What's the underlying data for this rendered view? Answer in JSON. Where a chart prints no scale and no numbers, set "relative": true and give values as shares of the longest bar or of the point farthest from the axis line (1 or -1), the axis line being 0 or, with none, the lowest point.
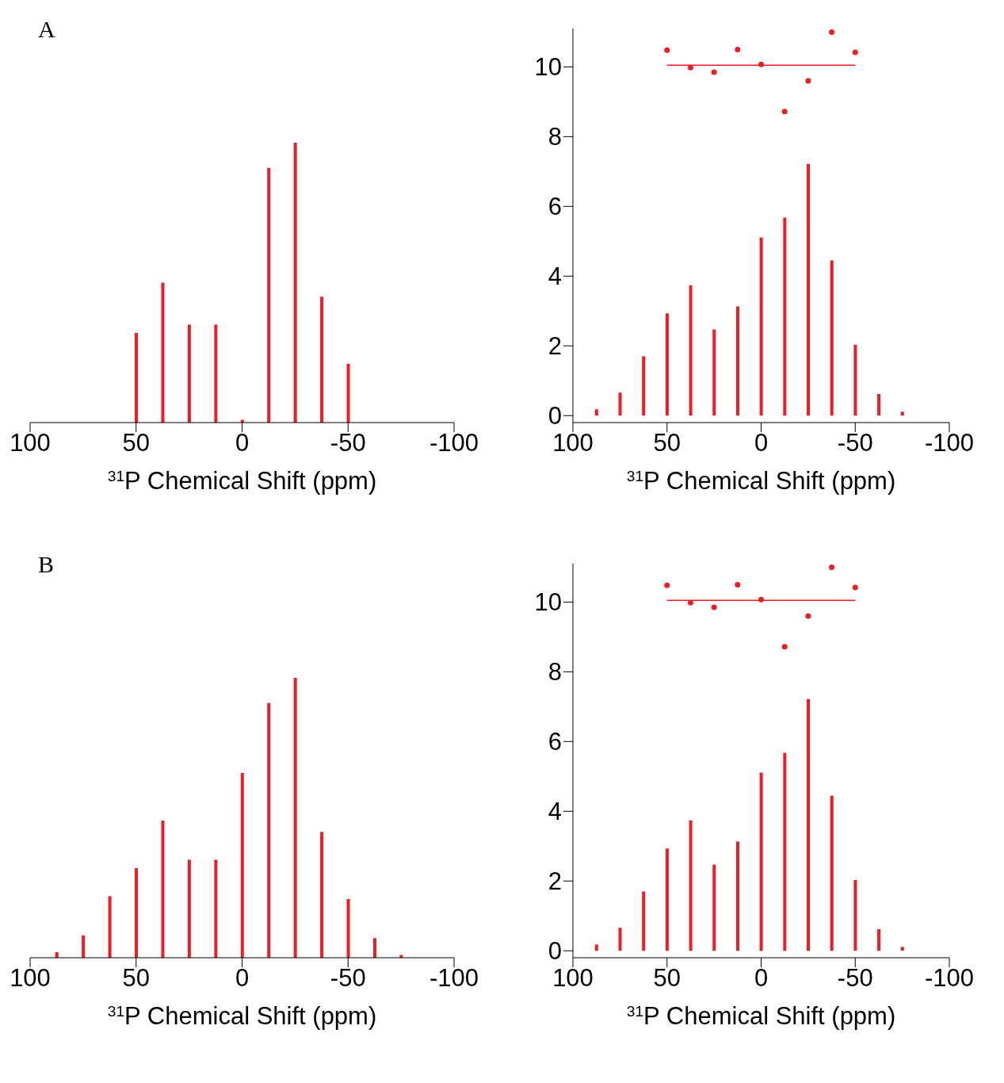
{
  "chart_data": [
    {
      "type": "bar",
      "annotations": [
        "A"
      ],
      "relative": true,
      "x": [
        50,
        37.5,
        25,
        12.5,
        0,
        -12.5,
        -25,
        -37.5,
        -50
      ],
      "values": [
        0.32,
        0.5,
        0.35,
        0.35,
        0.01,
        0.91,
        1,
        0.45,
        0.21
      ],
      "color": "#ee1c25",
      "xlim": [
        100,
        -100
      ],
      "xticks": [
        100,
        50,
        0,
        -50,
        -100
      ],
      "xlabel": "$^{31}$P Chemical Shift (ppm)",
      "tick_labels": "x"
    },
    {
      "type": "bar",
      "x": [
        87.5,
        75,
        62.5,
        50,
        37.5,
        25,
        12.5,
        0,
        -12.5,
        -25,
        -37.5,
        -50,
        -62.5,
        -75
      ],
      "series": [
        {
          "type": "bar",
          "color": "#ee1c25",
          "values": [
            0.18,
            0.66,
            1.7,
            2.93,
            3.74,
            2.47,
            3.13,
            5.11,
            5.68,
            7.22,
            4.45,
            2.03,
            0.62,
            0.11
          ]
        },
        {
          "type": "scatter",
          "marker": "circle",
          "color": "#ee1c25",
          "x": [
            50,
            37.5,
            25,
            12.5,
            0,
            -12.5,
            -25,
            -37.5,
            -50
          ],
          "values": [
            10.48,
            9.98,
            9.85,
            10.5,
            10.07,
            8.72,
            9.6,
            11.0,
            10.42
          ]
        },
        {
          "type": "line",
          "color": "#ee1c25",
          "x": [
            50,
            -50
          ],
          "values": [
            10.05,
            10.05
          ]
        }
      ],
      "xlim": [
        100,
        -100
      ],
      "xticks": [
        100,
        50,
        0,
        -50,
        -100
      ],
      "ylim": [
        -0.2,
        11.1
      ],
      "yticks": [
        0,
        2,
        4,
        6,
        8,
        10
      ],
      "xlabel": "$^{31}$P Chemical Shift (ppm)"
    },
    {
      "type": "bar",
      "annotations": [
        "B"
      ],
      "relative": true,
      "x": [
        87.5,
        75,
        62.5,
        50,
        37.5,
        25,
        12.5,
        0,
        -12.5,
        -25,
        -37.5,
        -50,
        -62.5,
        -75
      ],
      "values": [
        0.02,
        0.08,
        0.22,
        0.32,
        0.49,
        0.35,
        0.35,
        0.66,
        0.91,
        1,
        0.45,
        0.21,
        0.07,
        0.01
      ],
      "color": "#ee1c25",
      "xlim": [
        100,
        -100
      ],
      "xticks": [
        100,
        50,
        0,
        -50,
        -100
      ],
      "xlabel": "$^{31}$P Chemical Shift (ppm)",
      "tick_labels": "x"
    },
    {
      "type": "bar",
      "x": [
        87.5,
        75,
        62.5,
        50,
        37.5,
        25,
        12.5,
        0,
        -12.5,
        -25,
        -37.5,
        -50,
        -62.5,
        -75
      ],
      "series": [
        {
          "type": "bar",
          "color": "#ee1c25",
          "values": [
            0.18,
            0.66,
            1.7,
            2.93,
            3.74,
            2.47,
            3.13,
            5.11,
            5.68,
            7.22,
            4.45,
            2.03,
            0.62,
            0.11
          ]
        },
        {
          "type": "scatter",
          "marker": "circle",
          "color": "#ee1c25",
          "x": [
            50,
            37.5,
            25,
            12.5,
            0,
            -12.5,
            -25,
            -37.5,
            -50
          ],
          "values": [
            10.48,
            9.98,
            9.85,
            10.5,
            10.07,
            8.72,
            9.6,
            11.0,
            10.42
          ]
        },
        {
          "type": "line",
          "color": "#ee1c25",
          "x": [
            50,
            -50
          ],
          "values": [
            10.05,
            10.05
          ]
        }
      ],
      "xlim": [
        100,
        -100
      ],
      "xticks": [
        100,
        50,
        0,
        -50,
        -100
      ],
      "ylim": [
        -0.2,
        11.1
      ],
      "yticks": [
        0,
        2,
        4,
        6,
        8,
        10
      ],
      "xlabel": "$^{31}$P Chemical Shift (ppm)"
    }
  ]
}
